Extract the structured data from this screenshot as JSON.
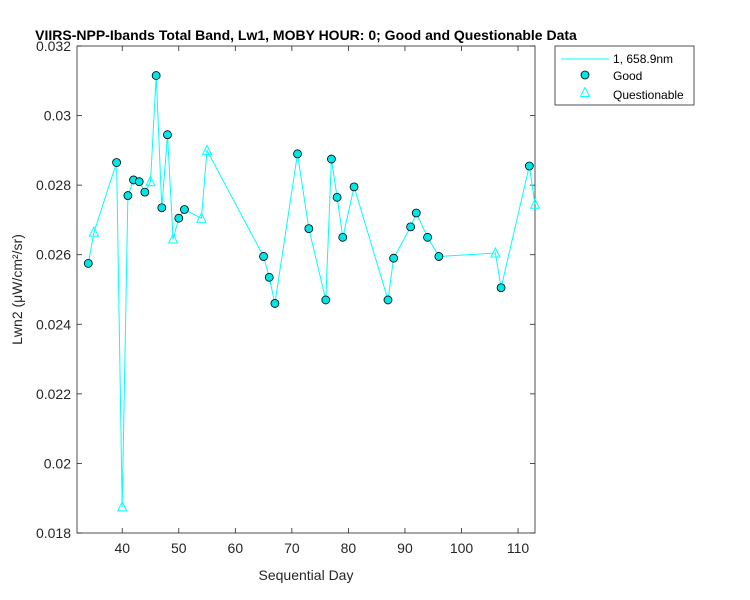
{
  "chart_data": {
    "type": "line",
    "title": "VIIRS-NPP-Ibands Total Band, Lw1, MOBY HOUR: 0;  Good and Questionable Data",
    "xlabel": "Sequential Day",
    "ylabel": "Lwn2 (μW/cm²/sr)",
    "xlim": [
      32,
      113
    ],
    "ylim": [
      0.018,
      0.032
    ],
    "xticks": [
      40,
      50,
      60,
      70,
      80,
      90,
      100,
      110
    ],
    "yticks": [
      0.018,
      0.02,
      0.022,
      0.024,
      0.026,
      0.028,
      0.03,
      0.032
    ],
    "xtick_labels": [
      "40",
      "50",
      "60",
      "70",
      "80",
      "90",
      "100",
      "110"
    ],
    "ytick_labels": [
      "0.018",
      "0.02",
      "0.022",
      "0.024",
      "0.026",
      "0.028",
      "0.03",
      "0.032"
    ],
    "grid": false,
    "legend_position": "outside-top-right",
    "line_color": "#00ffff",
    "marker_fill": "#00e5e5",
    "series": [
      {
        "name": "1, 658.9nm",
        "kind": "line",
        "x": [
          34,
          35,
          39,
          40,
          41,
          42,
          43,
          44,
          45,
          46,
          47,
          48,
          49,
          50,
          51,
          54,
          55,
          65,
          66,
          67,
          71,
          73,
          76,
          77,
          78,
          79,
          81,
          87,
          88,
          91,
          92,
          94,
          96,
          106,
          107,
          112,
          113
        ],
        "y": [
          0.02575,
          0.02665,
          0.02865,
          0.01875,
          0.0277,
          0.02815,
          0.0281,
          0.0278,
          0.0281,
          0.03115,
          0.02735,
          0.02945,
          0.02645,
          0.02705,
          0.0273,
          0.02705,
          0.029,
          0.02595,
          0.02535,
          0.0246,
          0.0289,
          0.02675,
          0.0247,
          0.02875,
          0.02765,
          0.0265,
          0.02795,
          0.0247,
          0.0259,
          0.0268,
          0.0272,
          0.0265,
          0.02595,
          0.02605,
          0.02505,
          0.02855,
          0.02745
        ]
      },
      {
        "name": "Good",
        "kind": "marker-circle",
        "x": [
          34,
          39,
          41,
          42,
          43,
          44,
          46,
          47,
          48,
          50,
          51,
          65,
          66,
          67,
          71,
          73,
          76,
          77,
          78,
          79,
          81,
          87,
          88,
          91,
          92,
          94,
          96,
          107,
          112
        ],
        "y": [
          0.02575,
          0.02865,
          0.0277,
          0.02815,
          0.0281,
          0.0278,
          0.03115,
          0.02735,
          0.02945,
          0.02705,
          0.0273,
          0.02595,
          0.02535,
          0.0246,
          0.0289,
          0.02675,
          0.0247,
          0.02875,
          0.02765,
          0.0265,
          0.02795,
          0.0247,
          0.0259,
          0.0268,
          0.0272,
          0.0265,
          0.02595,
          0.02505,
          0.02855
        ]
      },
      {
        "name": "Questionable",
        "kind": "marker-triangle",
        "x": [
          35,
          40,
          45,
          49,
          54,
          55,
          106,
          113
        ],
        "y": [
          0.02665,
          0.01875,
          0.0281,
          0.02645,
          0.02705,
          0.029,
          0.02605,
          0.02745
        ]
      }
    ]
  }
}
